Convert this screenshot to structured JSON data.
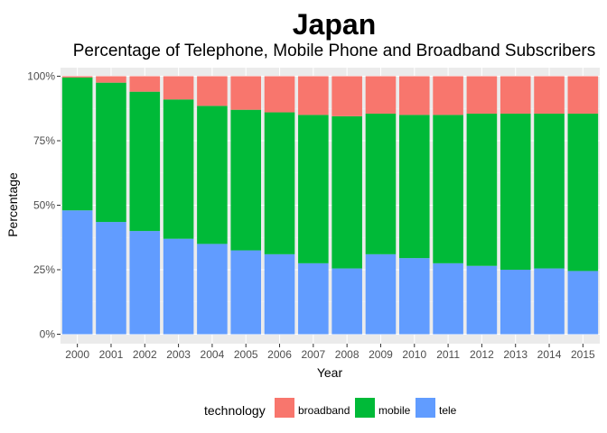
{
  "chart_data": {
    "type": "bar",
    "stacked": true,
    "title": "Japan",
    "subtitle": "Percentage of Telephone, Mobile Phone and Broadband Subscribers",
    "xlabel": "Year",
    "ylabel": "Percentage",
    "ylim": [
      0,
      100
    ],
    "y_ticks": [
      "0%",
      "25%",
      "50%",
      "75%",
      "100%"
    ],
    "categories": [
      "2000",
      "2001",
      "2002",
      "2003",
      "2004",
      "2005",
      "2006",
      "2007",
      "2008",
      "2009",
      "2010",
      "2011",
      "2012",
      "2013",
      "2014",
      "2015"
    ],
    "series": [
      {
        "name": "tele",
        "color": "#619CFF",
        "values": [
          48,
          43.5,
          40,
          37,
          35,
          32.5,
          31,
          27.5,
          25.5,
          31,
          29.5,
          27.5,
          26.5,
          25,
          25.5,
          24.5
        ]
      },
      {
        "name": "mobile",
        "color": "#00BA38",
        "values": [
          51.5,
          54,
          54,
          54,
          53.5,
          54.5,
          55,
          57.5,
          59,
          54.5,
          55.5,
          57.5,
          59,
          60.5,
          60,
          61
        ]
      },
      {
        "name": "broadband",
        "color": "#F8766D",
        "values": [
          0.5,
          2.5,
          6,
          9,
          11.5,
          13,
          14,
          15,
          15.5,
          14.5,
          15,
          15,
          14.5,
          14.5,
          14.5,
          14.5
        ]
      }
    ],
    "grid": true,
    "legend": {
      "title": "technology",
      "position": "bottom",
      "entries": [
        "broadband",
        "mobile",
        "tele"
      ]
    },
    "background_color": "#EBEBEB"
  }
}
